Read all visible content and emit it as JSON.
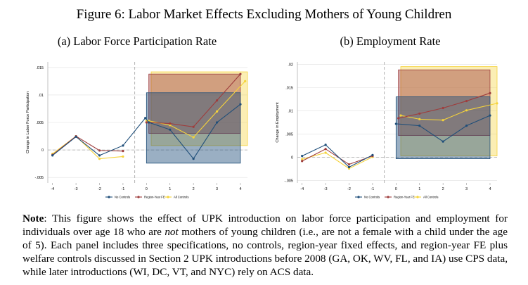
{
  "figure": {
    "title": "Figure 6: Labor Market Effects Excluding Mothers of Young Children",
    "note_label": "Note",
    "note_part1": ": This figure shows the effect of UPK introduction on labor force participation and employment for individuals over age 18 who are ",
    "note_emph": "not",
    "note_part2": " mothers of young children (i.e., are not a female with a child under the age of 5). Each panel includes three specifications, no controls, region-year fixed effects, and region-year FE plus welfare controls discussed in Section 2 UPK introductions before 2008 (GA, OK, WV, FL, and IA) use CPS data, while later introductions (WI, DC, VT, and NYC) rely on ACS data."
  },
  "colors": {
    "no_controls": "#1f4e79",
    "region_year_fe": "#9e3d3d",
    "all_controls": "#f5d33a",
    "grid": "#e0e0e0",
    "vline": "#aaaaaa",
    "hline": "#aaaaaa"
  },
  "chart_data": [
    {
      "type": "line",
      "panel": "a",
      "title": "(a) Labor Force Participation Rate",
      "ylabel": "Change in Labor Force Participation",
      "xlabel": "",
      "x": [
        -4,
        -3,
        -2,
        -1,
        0,
        1,
        2,
        3,
        4
      ],
      "xticks": [
        "-4",
        "-3",
        "-2",
        "-1",
        "0",
        "1",
        "2",
        "3",
        "4"
      ],
      "ylim": [
        -0.006,
        0.016
      ],
      "yticks": [
        -0.005,
        0,
        0.005,
        0.01,
        0.015
      ],
      "ytick_labels": [
        "-.005",
        "0",
        ".005",
        ".01",
        ".015"
      ],
      "event_line_x": -0.5,
      "legend": {
        "position": "bottom",
        "entries": [
          "No Controls",
          "Region-Year FE",
          "All Controls"
        ]
      },
      "series": [
        {
          "name": "No Controls",
          "color_key": "no_controls",
          "values": [
            -0.001,
            0.0024,
            -0.001,
            0.0008,
            0.0058,
            0.005,
            0.0037,
            -0.0016,
            0.005,
            0.0083
          ],
          "x": [
            -4,
            -3,
            -2,
            -1,
            -0.05,
            0.1,
            1,
            2,
            3,
            4
          ]
        },
        {
          "name": "Region-Year FE",
          "color_key": "region_year_fe",
          "values": [
            -0.0009,
            0.0025,
            -0.0001,
            -0.0002,
            0.005,
            0.005,
            0.0048,
            0.0042,
            0.009,
            0.0138
          ],
          "x": [
            -4,
            -3,
            -2,
            -1,
            0,
            0.1,
            1,
            2,
            3,
            4
          ]
        },
        {
          "name": "All Controls",
          "color_key": "all_controls",
          "values": [
            -0.0007,
            0.0025,
            -0.0016,
            -0.0012,
            0.0053,
            0.0053,
            0.0045,
            0.0023,
            0.007,
            0.0125
          ],
          "x": [
            -4,
            -3,
            -2,
            -1,
            0,
            0.1,
            1,
            2,
            3,
            4.2
          ]
        }
      ],
      "average_effect_boxes": [
        {
          "series": "No Controls",
          "x_range": [
            0,
            4
          ],
          "y_range": [
            -0.0024,
            0.0104
          ]
        },
        {
          "series": "Region-Year FE",
          "x_range": [
            0.1,
            4
          ],
          "y_range": [
            0.003,
            0.0138
          ]
        },
        {
          "series": "All Controls",
          "x_range": [
            0.2,
            4.3
          ],
          "y_range": [
            0.0008,
            0.0142
          ]
        }
      ]
    },
    {
      "type": "line",
      "panel": "b",
      "title": "(b) Employment Rate",
      "ylabel": "Change in Employment",
      "xlabel": "",
      "x": [
        -4,
        -3,
        -2,
        -1,
        0,
        1,
        2,
        3,
        4
      ],
      "xticks": [
        "-4",
        "-3",
        "-2",
        "-1",
        "0",
        "1",
        "2",
        "3",
        "4"
      ],
      "ylim": [
        -0.0055,
        0.0205
      ],
      "yticks": [
        -0.005,
        0,
        0.005,
        0.01,
        0.015,
        0.02
      ],
      "ytick_labels": [
        "-.005",
        "0",
        ".005",
        ".01",
        ".015",
        ".02"
      ],
      "event_line_x": -0.5,
      "legend": {
        "position": "bottom",
        "entries": [
          "No Controls",
          "Region-Year FE",
          "All Controls"
        ]
      },
      "series": [
        {
          "name": "No Controls",
          "color_key": "no_controls",
          "values": [
            0.0003,
            0.0027,
            -0.0021,
            0.0005,
            0.0072,
            0.0068,
            0.0034,
            0.0068,
            0.009
          ],
          "x": [
            -4,
            -3,
            -2,
            -1,
            0,
            1,
            2,
            3,
            4
          ]
        },
        {
          "name": "Region-Year FE",
          "color_key": "region_year_fe",
          "values": [
            -0.0008,
            0.0018,
            -0.0015,
            0.0003,
            0.0084,
            0.0094,
            0.0106,
            0.0121,
            0.0138
          ],
          "x": [
            -4,
            -3,
            -2,
            -1,
            0.1,
            1,
            2,
            3,
            4
          ]
        },
        {
          "name": "All Controls",
          "color_key": "all_controls",
          "values": [
            -0.0004,
            0.001,
            -0.0024,
            0.0001,
            0.009,
            0.0082,
            0.008,
            0.0101,
            0.0116
          ],
          "x": [
            -4,
            -3,
            -2,
            -1,
            0.2,
            1,
            2,
            3,
            4.3
          ]
        }
      ],
      "average_effect_boxes": [
        {
          "series": "No Controls",
          "x_range": [
            0,
            4
          ],
          "y_range": [
            -0.0003,
            0.013
          ]
        },
        {
          "series": "Region-Year FE",
          "x_range": [
            0.1,
            4
          ],
          "y_range": [
            0.0047,
            0.0188
          ]
        },
        {
          "series": "All Controls",
          "x_range": [
            0.2,
            4.3
          ],
          "y_range": [
            0.0003,
            0.0195
          ]
        }
      ]
    }
  ]
}
